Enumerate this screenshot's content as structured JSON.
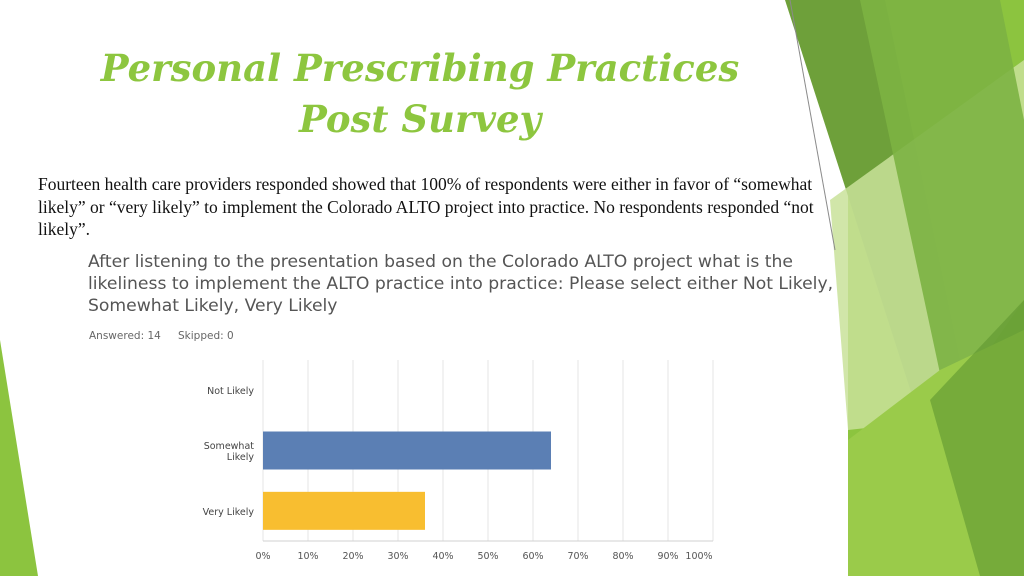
{
  "slide": {
    "title_line1": "Personal Prescribing Practices",
    "title_line2": "Post Survey",
    "body": "Fourteen health care providers responded showed that 100% of respondents were either in favor of “somewhat likely” or “very likely” to implement the Colorado ALTO project into practice.  No respondents responded “not likely”."
  },
  "survey": {
    "question": "After listening to the presentation based on the Colorado ALTO project what is the likeliness to implement the ALTO practice into practice: Please select either Not Likely, Somewhat Likely, Very Likely",
    "answered": "Answered: 14",
    "skipped": "Skipped: 0"
  },
  "colors": {
    "title": "#8dc63f",
    "somewhat_likely_bar": "#5b7fb4",
    "very_likely_bar": "#f8be30",
    "grid": "#e6e6e6"
  },
  "chart_data": {
    "type": "bar",
    "orientation": "horizontal",
    "categories": [
      "Not Likely",
      "Somewhat Likely",
      "Very Likely"
    ],
    "values": [
      0,
      64,
      36
    ],
    "xlim": [
      0,
      100
    ],
    "xticks": [
      "0%",
      "10%",
      "20%",
      "30%",
      "40%",
      "50%",
      "60%",
      "70%",
      "80%",
      "90%",
      "100%"
    ],
    "grid": true
  }
}
